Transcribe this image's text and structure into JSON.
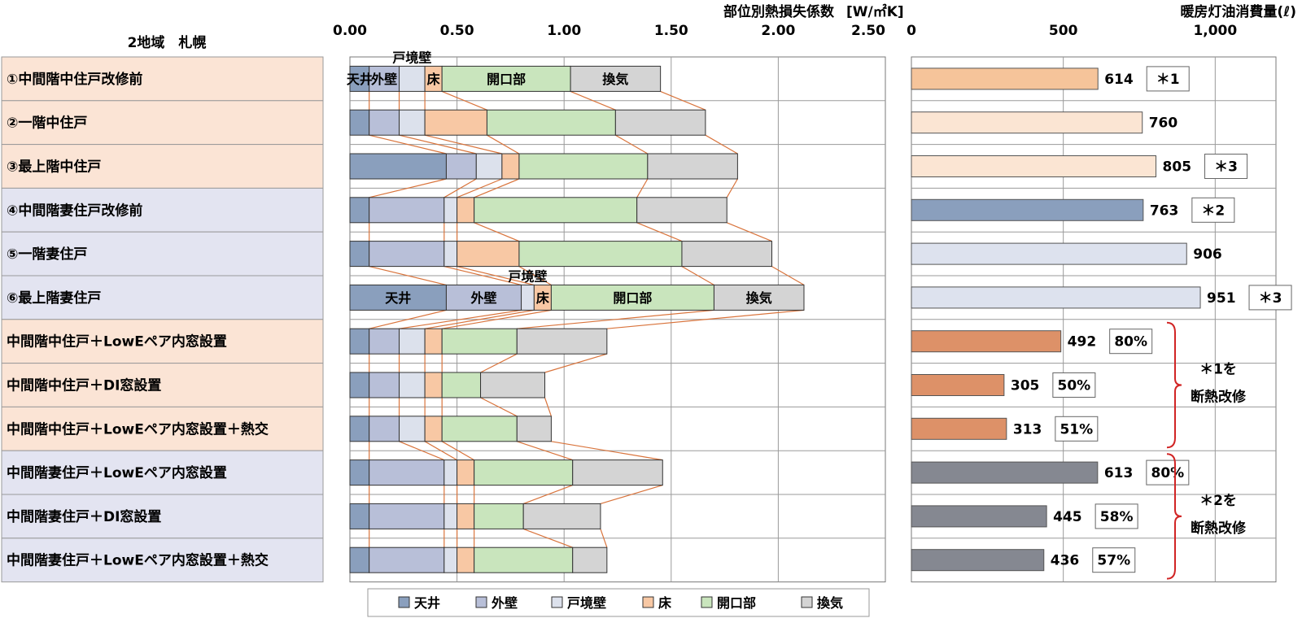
{
  "chart_data": [
    {
      "type": "bar",
      "title": "部位別熱損失係数",
      "unit": "[W/㎡K]",
      "orientation": "horizontal",
      "stacked": true,
      "xlim": [
        0,
        2.5
      ],
      "xticks": [
        "0.00",
        "0.50",
        "1.00",
        "1.50",
        "2.00",
        "2.50"
      ],
      "region_label": "2地域　札幌",
      "categories": [
        "①中間階中住戸改修前",
        "②一階中住戸",
        "③最上階中住戸",
        "④中間階妻住戸改修前",
        "⑤一階妻住戸",
        "⑥最上階妻住戸",
        "中間階中住戸＋LowEペア内窓設置",
        "中間階中住戸＋DI窓設置",
        "中間階中住戸＋LowEペア内窓設置＋熱交",
        "中間階妻住戸＋LowEペア内窓設置",
        "中間階妻住戸＋DI窓設置",
        "中間階妻住戸＋LowEペア内窓設置＋熱交"
      ],
      "row_groups": [
        "mid",
        "mid",
        "mid",
        "end",
        "end",
        "end",
        "mid",
        "mid",
        "mid",
        "end",
        "end",
        "end"
      ],
      "series": [
        {
          "name": "天井",
          "color": "#8a9fbd",
          "values": [
            0.09,
            0.09,
            0.45,
            0.09,
            0.09,
            0.45,
            0.09,
            0.09,
            0.09,
            0.09,
            0.09,
            0.09
          ]
        },
        {
          "name": "外壁",
          "color": "#b8bfd8",
          "values": [
            0.14,
            0.14,
            0.14,
            0.35,
            0.35,
            0.35,
            0.14,
            0.14,
            0.14,
            0.35,
            0.35,
            0.35
          ]
        },
        {
          "name": "戸境壁",
          "color": "#dce1ec",
          "values": [
            0.12,
            0.12,
            0.12,
            0.06,
            0.06,
            0.06,
            0.12,
            0.12,
            0.12,
            0.06,
            0.06,
            0.06
          ]
        },
        {
          "name": "床",
          "color": "#f8c8a4",
          "values": [
            0.08,
            0.29,
            0.08,
            0.08,
            0.29,
            0.08,
            0.08,
            0.08,
            0.08,
            0.08,
            0.08,
            0.08
          ]
        },
        {
          "name": "開口部",
          "color": "#c9e5bd",
          "values": [
            0.6,
            0.6,
            0.6,
            0.76,
            0.76,
            0.76,
            0.35,
            0.18,
            0.35,
            0.46,
            0.23,
            0.46
          ]
        },
        {
          "name": "換気",
          "color": "#d4d4d4",
          "values": [
            0.42,
            0.42,
            0.42,
            0.42,
            0.42,
            0.42,
            0.42,
            0.3,
            0.16,
            0.42,
            0.36,
            0.16
          ]
        }
      ],
      "segment_labels": {
        "row1": [
          "天井",
          "外壁",
          "戸境壁",
          "床",
          "開口部",
          "換気"
        ],
        "row6": [
          "天井",
          "外壁",
          "戸境壁",
          "床",
          "開口部",
          "換気"
        ]
      },
      "legend": {
        "placement": "bottom",
        "entries": [
          "天井",
          "外壁",
          "戸境壁",
          "床",
          "開口部",
          "換気"
        ]
      }
    },
    {
      "type": "bar",
      "title": "暖房灯油消費量(ℓ)",
      "orientation": "horizontal",
      "xlim": [
        0,
        1200
      ],
      "xticks": [
        "0",
        "500",
        "1,000"
      ],
      "values": [
        614,
        760,
        805,
        763,
        906,
        951,
        492,
        305,
        313,
        613,
        445,
        436
      ],
      "value_labels": [
        "614",
        "760",
        "805",
        "763",
        "906",
        "951",
        "492",
        "305",
        "313",
        "613",
        "445",
        "436"
      ],
      "bar_colors": [
        "#f6c49a",
        "#fbe5d3",
        "#fbe5d3",
        "#8a9fbd",
        "#dde2ee",
        "#dde2ee",
        "#dd9168",
        "#dd9168",
        "#dd9168",
        "#858891",
        "#858891",
        "#858891"
      ],
      "annotations": [
        "＊1",
        "",
        "＊3",
        "＊2",
        "",
        "＊3",
        "80%",
        "50%",
        "51%",
        "80%",
        "58%",
        "57%"
      ],
      "bracket_notes": [
        {
          "rows": [
            6,
            8
          ],
          "text1": "＊1を",
          "text2": "断熱改修"
        },
        {
          "rows": [
            9,
            11
          ],
          "text1": "＊2を",
          "text2": "断熱改修"
        }
      ]
    }
  ],
  "colors": {
    "mid_row_bg": "#fbe4d5",
    "end_row_bg": "#e3e4f1",
    "connector": "#d9743c",
    "bracket": "#d12424"
  }
}
